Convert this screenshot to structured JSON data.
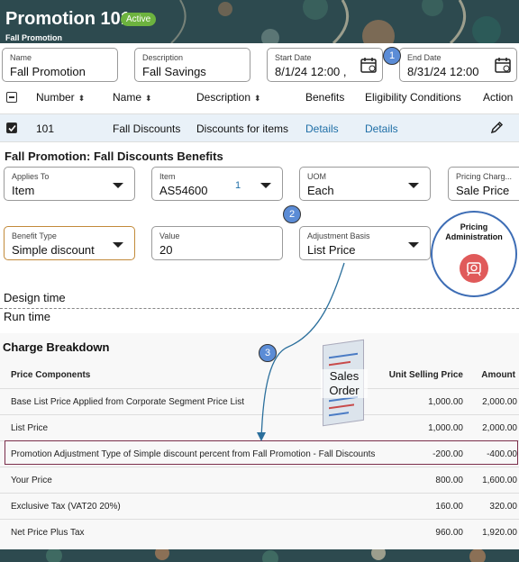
{
  "header": {
    "title": "Promotion 101",
    "status": "Active",
    "subtitle": "Fall Promotion",
    "colors": {
      "bg": "#2d4a4f",
      "badge": "#6db33f"
    }
  },
  "top_fields": [
    {
      "label": "Name",
      "value": "Fall Promotion"
    },
    {
      "label": "Description",
      "value": "Fall Savings"
    },
    {
      "label": "Start Date",
      "value": "8/1/24 12:00 ,"
    },
    {
      "label": "End Date",
      "value": "8/31/24 12:00"
    }
  ],
  "table": {
    "headers": [
      "Number",
      "Name",
      "Description",
      "Benefits",
      "Eligibility Conditions",
      "Action"
    ],
    "row": {
      "number": "101",
      "name": "Fall Discounts",
      "description": "Discounts for items",
      "benefits": "Details",
      "eligibility": "Details"
    }
  },
  "benefits_section": {
    "title": "Fall Promotion: Fall Discounts Benefits",
    "fields": [
      {
        "label": "Applies To",
        "value": "Item"
      },
      {
        "label": "Item",
        "value": "AS54600",
        "badge": "1"
      },
      {
        "label": "UOM",
        "value": "Each"
      },
      {
        "label": "Pricing Charg...",
        "value": "Sale Price"
      },
      {
        "label": "Benefit Type",
        "value": "Simple discount p"
      },
      {
        "label": "Value",
        "value": "20"
      },
      {
        "label": "Adjustment Basis",
        "value": "List Price"
      }
    ]
  },
  "pricing_admin": {
    "line1": "Pricing",
    "line2": "Administration"
  },
  "callouts": [
    "1",
    "2",
    "3"
  ],
  "divider": {
    "design": "Design time",
    "run": "Run time"
  },
  "sales_order": {
    "line1": "Sales",
    "line2": "Order"
  },
  "charge_breakdown": {
    "title": "Charge Breakdown",
    "headers": [
      "Price Components",
      "Unit Selling Price",
      "Amount"
    ],
    "rows": [
      {
        "component": "Base List Price Applied from Corporate Segment Price List",
        "unit": "1,000.00",
        "amount": "2,000.00"
      },
      {
        "component": "List Price",
        "unit": "1,000.00",
        "amount": "2,000.00"
      },
      {
        "component": "Promotion Adjustment Type of Simple discount percent from Fall Promotion - Fall Discounts",
        "unit": "-200.00",
        "amount": "-400.00"
      },
      {
        "component": "Your Price",
        "unit": "800.00",
        "amount": "1,600.00"
      },
      {
        "component": "Exclusive Tax (VAT20 20%)",
        "unit": "160.00",
        "amount": "320.00"
      },
      {
        "component": "Net Price Plus Tax",
        "unit": "960.00",
        "amount": "1,920.00"
      }
    ]
  }
}
